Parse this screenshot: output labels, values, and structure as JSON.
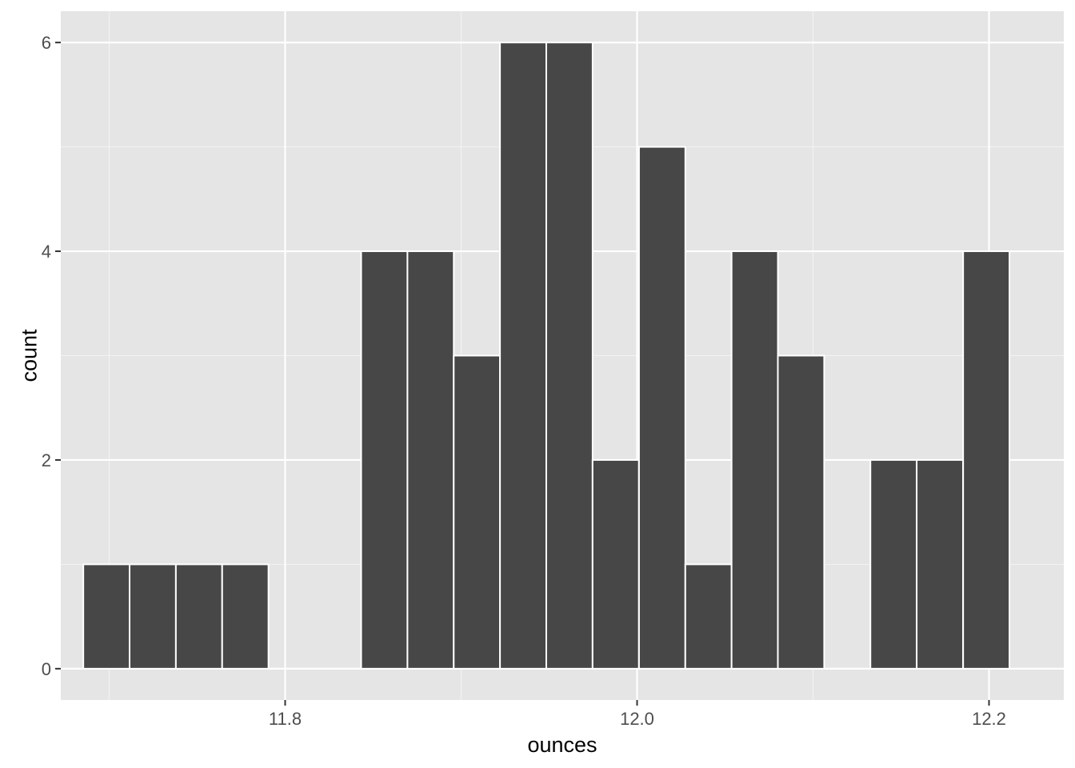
{
  "chart_data": {
    "type": "bar",
    "subtype": "histogram",
    "xlabel": "ounces",
    "ylabel": "count",
    "xlim": [
      11.6725,
      12.2425
    ],
    "ylim": [
      -0.3,
      6.3
    ],
    "x_ticks": [
      {
        "value": 11.8,
        "label": "11.8"
      },
      {
        "value": 12.0,
        "label": "12.0"
      },
      {
        "value": 12.2,
        "label": "12.2"
      }
    ],
    "x_minor_ticks": [
      11.7,
      11.9,
      12.1
    ],
    "y_ticks": [
      {
        "value": 0,
        "label": "0"
      },
      {
        "value": 2,
        "label": "2"
      },
      {
        "value": 4,
        "label": "4"
      },
      {
        "value": 6,
        "label": "6"
      }
    ],
    "y_minor_ticks": [
      1,
      3,
      5
    ],
    "bin_width": 0.02632,
    "bins": [
      {
        "x_start": 11.6853,
        "count": 1
      },
      {
        "x_start": 11.7116,
        "count": 1
      },
      {
        "x_start": 11.7379,
        "count": 1
      },
      {
        "x_start": 11.7642,
        "count": 1
      },
      {
        "x_start": 11.7905,
        "count": 0
      },
      {
        "x_start": 11.8168,
        "count": 0
      },
      {
        "x_start": 11.8432,
        "count": 4
      },
      {
        "x_start": 11.8695,
        "count": 4
      },
      {
        "x_start": 11.8958,
        "count": 3
      },
      {
        "x_start": 11.9221,
        "count": 6
      },
      {
        "x_start": 11.9484,
        "count": 6
      },
      {
        "x_start": 11.9747,
        "count": 2
      },
      {
        "x_start": 12.0011,
        "count": 5
      },
      {
        "x_start": 12.0274,
        "count": 1
      },
      {
        "x_start": 12.0537,
        "count": 4
      },
      {
        "x_start": 12.08,
        "count": 3
      },
      {
        "x_start": 12.1063,
        "count": 0
      },
      {
        "x_start": 12.1326,
        "count": 2
      },
      {
        "x_start": 12.1589,
        "count": 2
      },
      {
        "x_start": 12.1853,
        "count": 4
      }
    ],
    "grid": true,
    "legend": "none",
    "colors": {
      "panel_background": "#e5e5e5",
      "grid_major": "#ffffff",
      "grid_minor": "#f2f2f2",
      "bar_fill": "#474747",
      "bar_outline": "#ffffff",
      "tick_label": "#4d4d4d",
      "axis_title": "#000000",
      "tick_mark": "#333333"
    }
  }
}
